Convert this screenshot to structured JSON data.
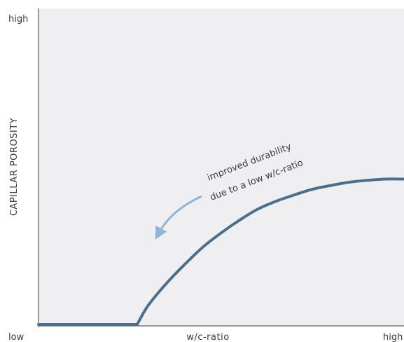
{
  "chart_data": {
    "type": "line",
    "title": "",
    "xlabel": "w/c-ratio",
    "ylabel": "CAPILLAR POROSITY",
    "x_ticks": [
      "low",
      "high"
    ],
    "y_ticks": [
      "low",
      "high"
    ],
    "xlim": [
      0,
      1
    ],
    "ylim": [
      0,
      1
    ],
    "grid": false,
    "series": [
      {
        "x": [
          0,
          0.27,
          0.3,
          0.35,
          0.4,
          0.45,
          0.5,
          0.55,
          0.6,
          0.65,
          0.7,
          0.75,
          0.8,
          0.85,
          0.9,
          0.95,
          1.0
        ],
        "y": [
          0,
          0,
          0.06,
          0.13,
          0.19,
          0.245,
          0.29,
          0.33,
          0.365,
          0.39,
          0.41,
          0.428,
          0.44,
          0.45,
          0.456,
          0.46,
          0.46
        ]
      }
    ],
    "annotation": {
      "line1": "improved durability",
      "line2": "due to a low w/c-ratio"
    },
    "colors": {
      "plot_background": "#efeff2",
      "line": "#4a6f8c",
      "arrow": "#8fb4d6",
      "axis": "#3a3a3a"
    }
  }
}
